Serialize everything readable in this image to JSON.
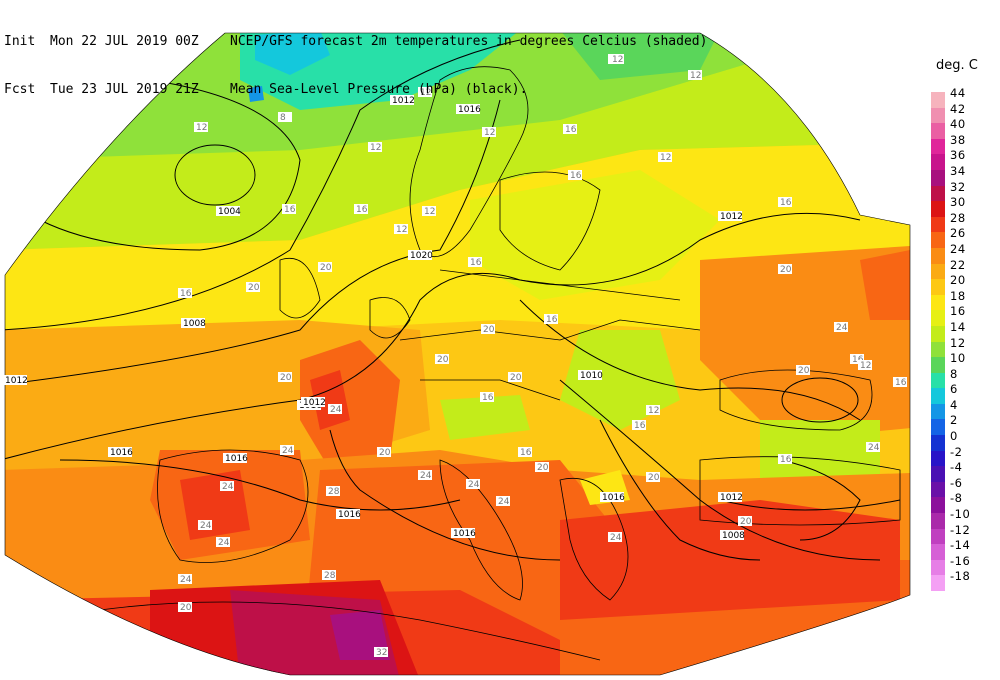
{
  "header": {
    "init_label": "Init",
    "init_value": "Mon 22 JUL 2019 00Z",
    "fcst_label": "Fcst",
    "fcst_value": "Tue 23 JUL 2019 21Z",
    "line1": "NCEP/GFS forecast 2m temperatures in degrees Celcius (shaded)",
    "line2": "Mean Sea-Level Pressure (hPa) (black)."
  },
  "legend": {
    "unit": "deg. C",
    "levels": [
      {
        "label": "44",
        "color": "#f6b3bd"
      },
      {
        "label": "42",
        "color": "#f08fb0"
      },
      {
        "label": "40",
        "color": "#ea5fa3"
      },
      {
        "label": "38",
        "color": "#e0259a"
      },
      {
        "label": "36",
        "color": "#c8148c"
      },
      {
        "label": "34",
        "color": "#a8107e"
      },
      {
        "label": "32",
        "color": "#be1048"
      },
      {
        "label": "30",
        "color": "#dc1414"
      },
      {
        "label": "28",
        "color": "#f03a16"
      },
      {
        "label": "26",
        "color": "#f86614"
      },
      {
        "label": "24",
        "color": "#fa8c14"
      },
      {
        "label": "22",
        "color": "#fbab14"
      },
      {
        "label": "20",
        "color": "#fdc814"
      },
      {
        "label": "18",
        "color": "#fde614"
      },
      {
        "label": "16",
        "color": "#e6f014"
      },
      {
        "label": "14",
        "color": "#c3ec1a"
      },
      {
        "label": "12",
        "color": "#8fe13a"
      },
      {
        "label": "10",
        "color": "#5ad65a"
      },
      {
        "label": "8",
        "color": "#28e0a8"
      },
      {
        "label": "6",
        "color": "#14c8dc"
      },
      {
        "label": "4",
        "color": "#1496e6"
      },
      {
        "label": "2",
        "color": "#1464e6"
      },
      {
        "label": "0",
        "color": "#1432d2"
      },
      {
        "label": "-2",
        "color": "#2814c8"
      },
      {
        "label": "-4",
        "color": "#4a10b4"
      },
      {
        "label": "-6",
        "color": "#6a10a8"
      },
      {
        "label": "-8",
        "color": "#8c109c"
      },
      {
        "label": "-10",
        "color": "#aa2aaa"
      },
      {
        "label": "-12",
        "color": "#c040c0"
      },
      {
        "label": "-14",
        "color": "#d660d6"
      },
      {
        "label": "-16",
        "color": "#e67ee6"
      },
      {
        "label": "-18",
        "color": "#f4a0f4"
      }
    ]
  },
  "map": {
    "pressure_labels": [
      "1012",
      "1016",
      "1004",
      "1008",
      "1012",
      "1012",
      "1016",
      "1016",
      "1016",
      "1016",
      "1016",
      "1020",
      "1012",
      "1010",
      "1016",
      "1012",
      "1008"
    ],
    "temperature_labels": [
      "12",
      "8",
      "12",
      "16",
      "16",
      "20",
      "16",
      "20",
      "20",
      "24",
      "24",
      "28",
      "24",
      "24",
      "24",
      "28",
      "32",
      "20",
      "20",
      "24",
      "24",
      "20",
      "20",
      "16",
      "16",
      "16",
      "12",
      "16",
      "12",
      "12",
      "12",
      "16",
      "16",
      "20",
      "24",
      "20",
      "16",
      "12",
      "16",
      "24",
      "16",
      "16",
      "12",
      "20",
      "20",
      "16",
      "20",
      "24",
      "24",
      "24",
      "20",
      "12",
      "12",
      "12",
      "12",
      "12"
    ]
  }
}
